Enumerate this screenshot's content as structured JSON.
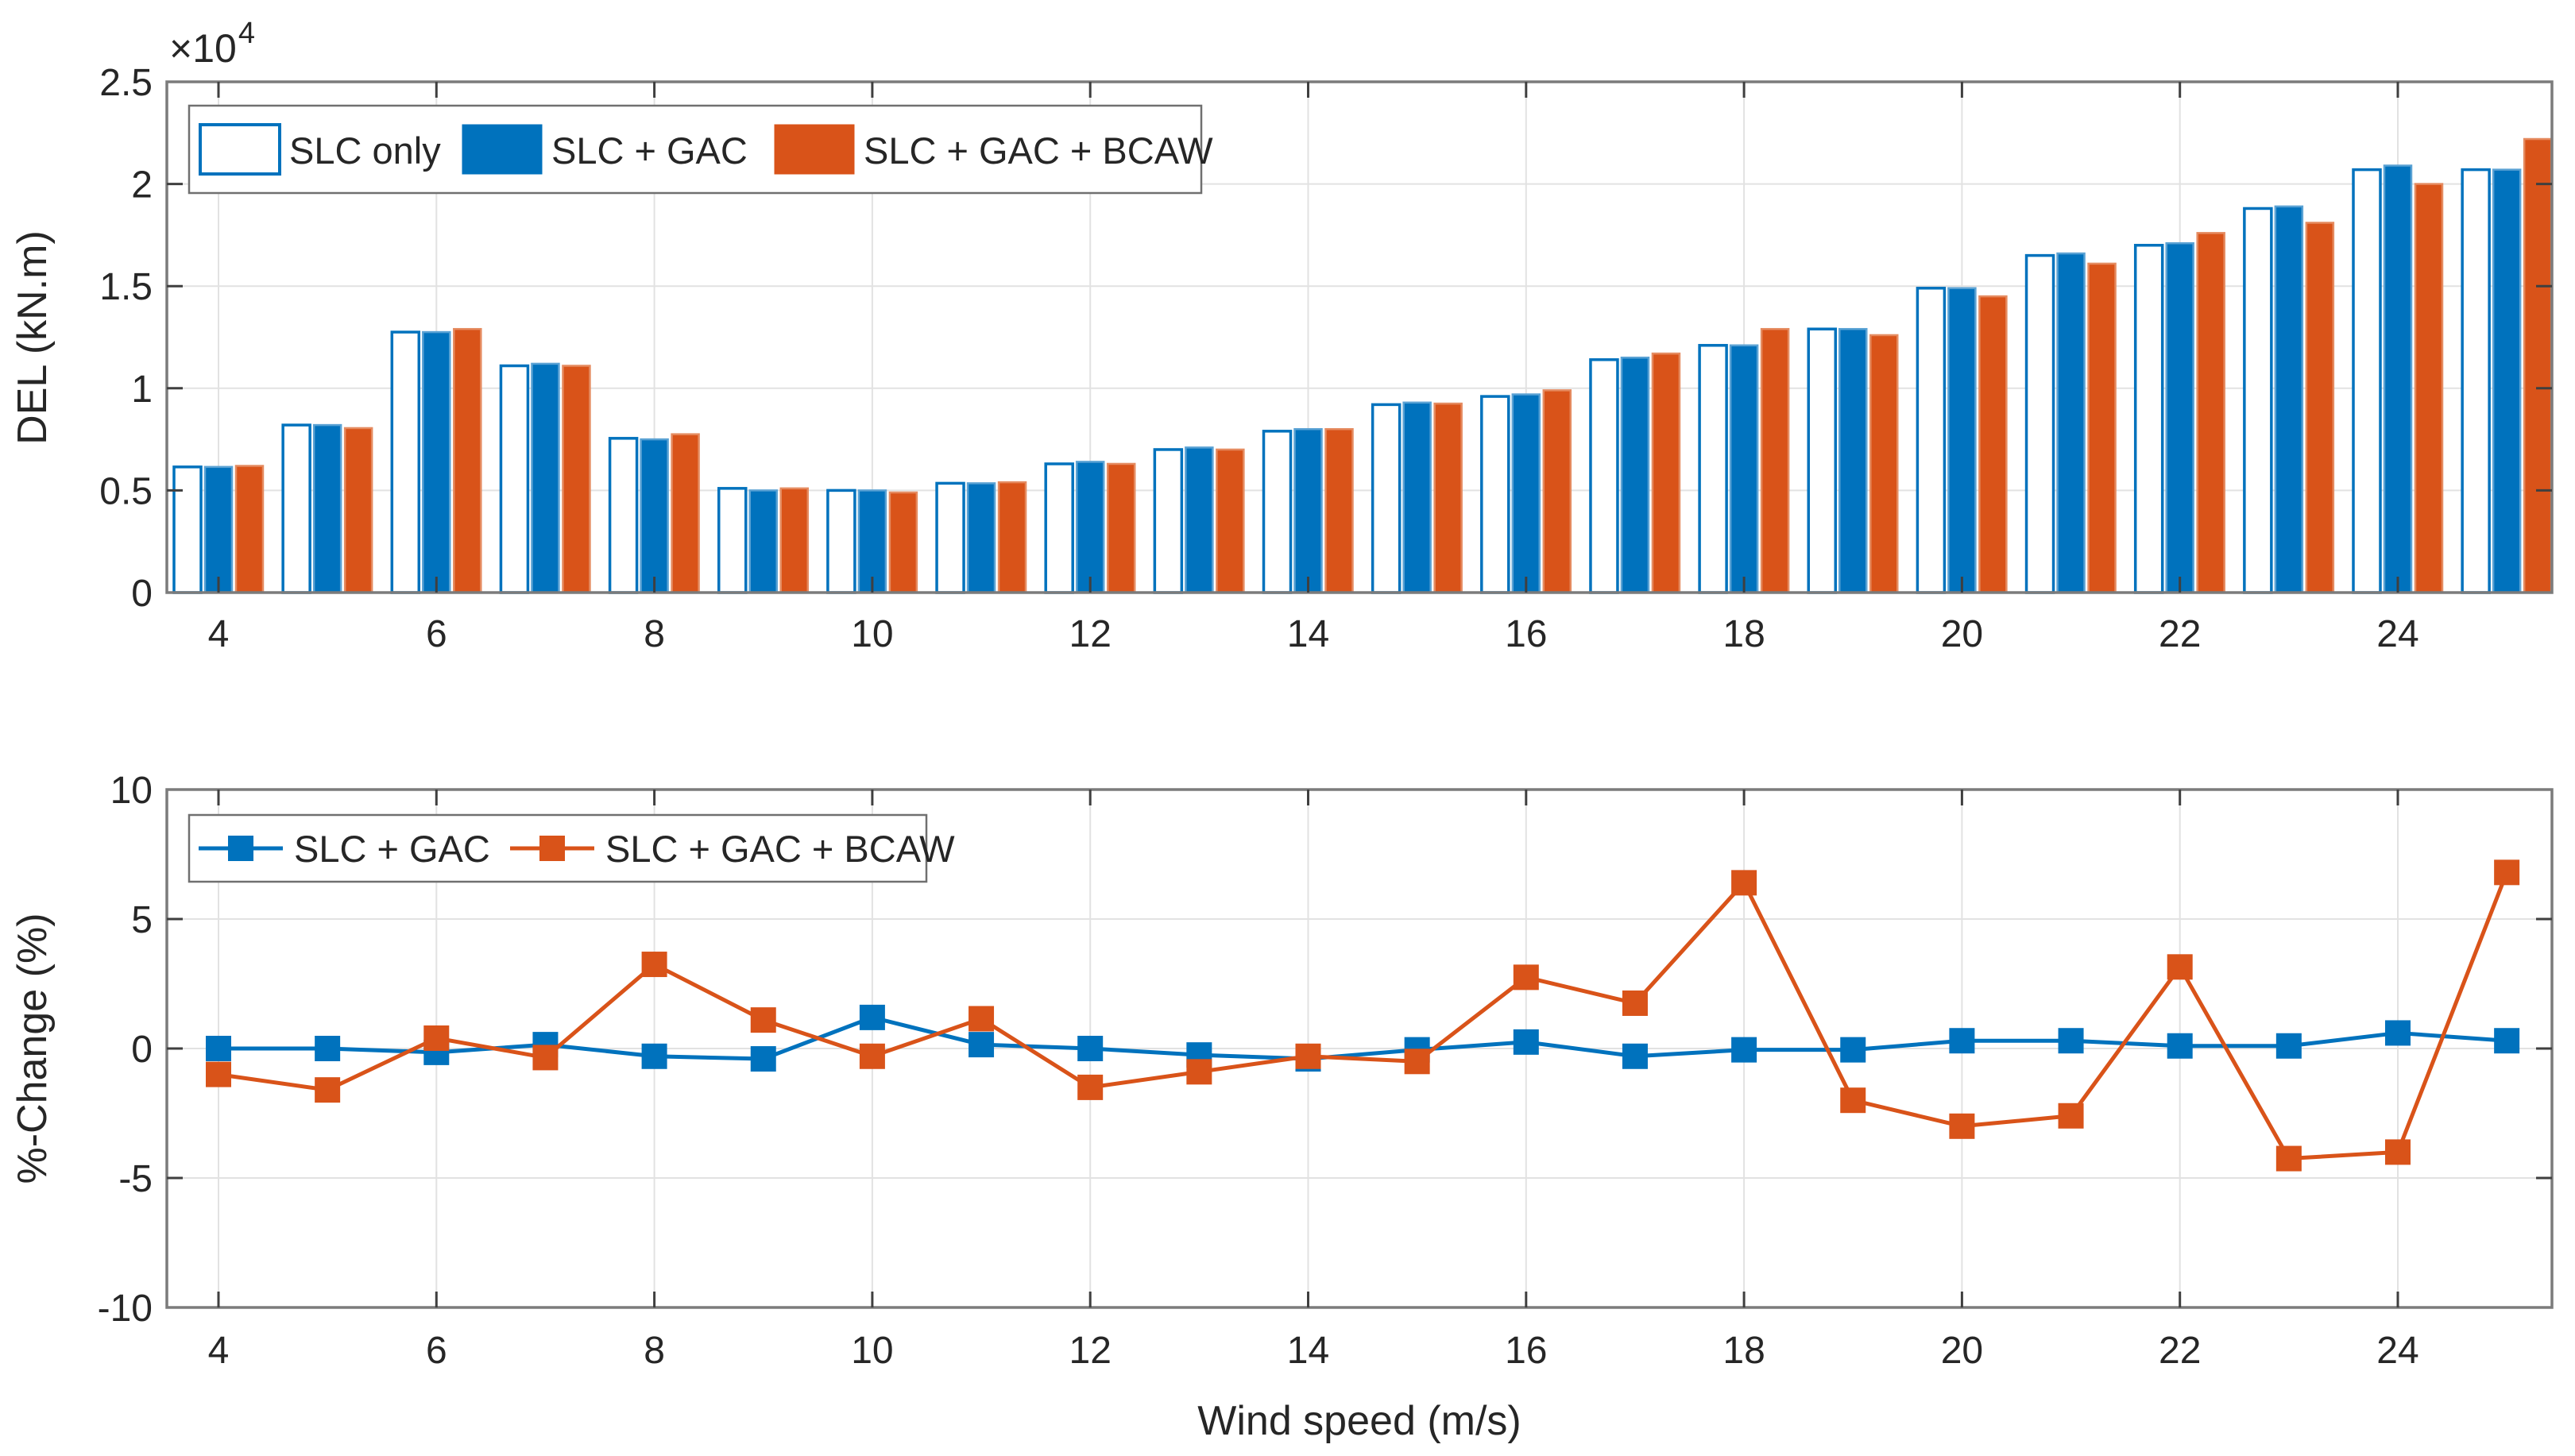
{
  "colors": {
    "blue": "#0072BD",
    "blue_edge_light": "#5AA2D4",
    "orange": "#D95319",
    "orange_edge_light": "#E58B60",
    "grid": "#E2E2E2",
    "spine": "#7B7B7B",
    "tick": "#3F3F3F",
    "text": "#262626",
    "background": "#FFFFFF"
  },
  "chart_data": [
    {
      "id": "del-bar-chart",
      "type": "bar",
      "ylabel": "DEL (kN.m)",
      "y_multiplier_prefix": "×10",
      "y_multiplier_exponent": "4",
      "y_unit_note": "values in units of 1e4 kN.m",
      "ylim": [
        0,
        2.5
      ],
      "yticks": [
        0,
        0.5,
        1,
        1.5,
        2,
        2.5
      ],
      "ytick_labels": [
        "0",
        "0.5",
        "1",
        "1.5",
        "2",
        "2.5"
      ],
      "categories": [
        4,
        5,
        6,
        7,
        8,
        9,
        10,
        11,
        12,
        13,
        14,
        15,
        16,
        17,
        18,
        19,
        20,
        21,
        22,
        23,
        24,
        25
      ],
      "xticks": [
        4,
        6,
        8,
        10,
        12,
        14,
        16,
        18,
        20,
        22,
        24
      ],
      "xtick_labels": [
        "4",
        "6",
        "8",
        "10",
        "12",
        "14",
        "16",
        "18",
        "20",
        "22",
        "24"
      ],
      "grid": true,
      "legend_position": "inside top-left",
      "series": [
        {
          "name": "SLC only",
          "fill": "#FFFFFF",
          "edge": "#0072BD",
          "values": [
            0.615,
            0.82,
            1.275,
            1.11,
            0.755,
            0.51,
            0.5,
            0.535,
            0.63,
            0.7,
            0.79,
            0.92,
            0.96,
            1.14,
            1.21,
            1.29,
            1.49,
            1.65,
            1.7,
            1.88,
            2.07,
            2.07
          ]
        },
        {
          "name": "SLC + GAC",
          "fill": "#0072BD",
          "edge": "#5AA2D4",
          "values": [
            0.615,
            0.82,
            1.275,
            1.12,
            0.75,
            0.5,
            0.5,
            0.535,
            0.64,
            0.71,
            0.8,
            0.93,
            0.97,
            1.15,
            1.21,
            1.29,
            1.49,
            1.66,
            1.71,
            1.89,
            2.09,
            2.07
          ]
        },
        {
          "name": "SLC + GAC + BCAW",
          "fill": "#D95319",
          "edge": "#E58B60",
          "values": [
            0.62,
            0.805,
            1.29,
            1.11,
            0.775,
            0.51,
            0.49,
            0.54,
            0.63,
            0.7,
            0.8,
            0.925,
            0.99,
            1.17,
            1.29,
            1.26,
            1.45,
            1.61,
            1.76,
            1.81,
            2.0,
            2.22
          ]
        }
      ]
    },
    {
      "id": "pct-change-line-chart",
      "type": "line",
      "ylabel": "%-Change (%)",
      "xlabel": "Wind speed (m/s)",
      "ylim": [
        -10,
        10
      ],
      "yticks": [
        -10,
        -5,
        0,
        5,
        10
      ],
      "ytick_labels": [
        "-10",
        "-5",
        "0",
        "5",
        "10"
      ],
      "x": [
        4,
        5,
        6,
        7,
        8,
        9,
        10,
        11,
        12,
        13,
        14,
        15,
        16,
        17,
        18,
        19,
        20,
        21,
        22,
        23,
        24,
        25
      ],
      "xticks": [
        4,
        6,
        8,
        10,
        12,
        14,
        16,
        18,
        20,
        22,
        24
      ],
      "xtick_labels": [
        "4",
        "6",
        "8",
        "10",
        "12",
        "14",
        "16",
        "18",
        "20",
        "22",
        "24"
      ],
      "grid": true,
      "legend_position": "inside top-left",
      "series": [
        {
          "name": "SLC + GAC",
          "color": "#0072BD",
          "marker": "square",
          "values": [
            0.0,
            0.0,
            -0.15,
            0.15,
            -0.3,
            -0.4,
            1.2,
            0.15,
            0.0,
            -0.25,
            -0.4,
            -0.05,
            0.25,
            -0.3,
            -0.05,
            -0.05,
            0.3,
            0.3,
            0.1,
            0.1,
            0.6,
            0.3
          ]
        },
        {
          "name": "SLC + GAC + BCAW",
          "color": "#D95319",
          "marker": "square",
          "values": [
            -1.0,
            -1.6,
            0.4,
            -0.35,
            3.25,
            1.1,
            -0.3,
            1.15,
            -1.5,
            -0.9,
            -0.3,
            -0.5,
            2.75,
            1.75,
            6.4,
            -2.0,
            -3.0,
            -2.6,
            3.15,
            -4.25,
            -4.0,
            6.8
          ]
        }
      ]
    }
  ]
}
